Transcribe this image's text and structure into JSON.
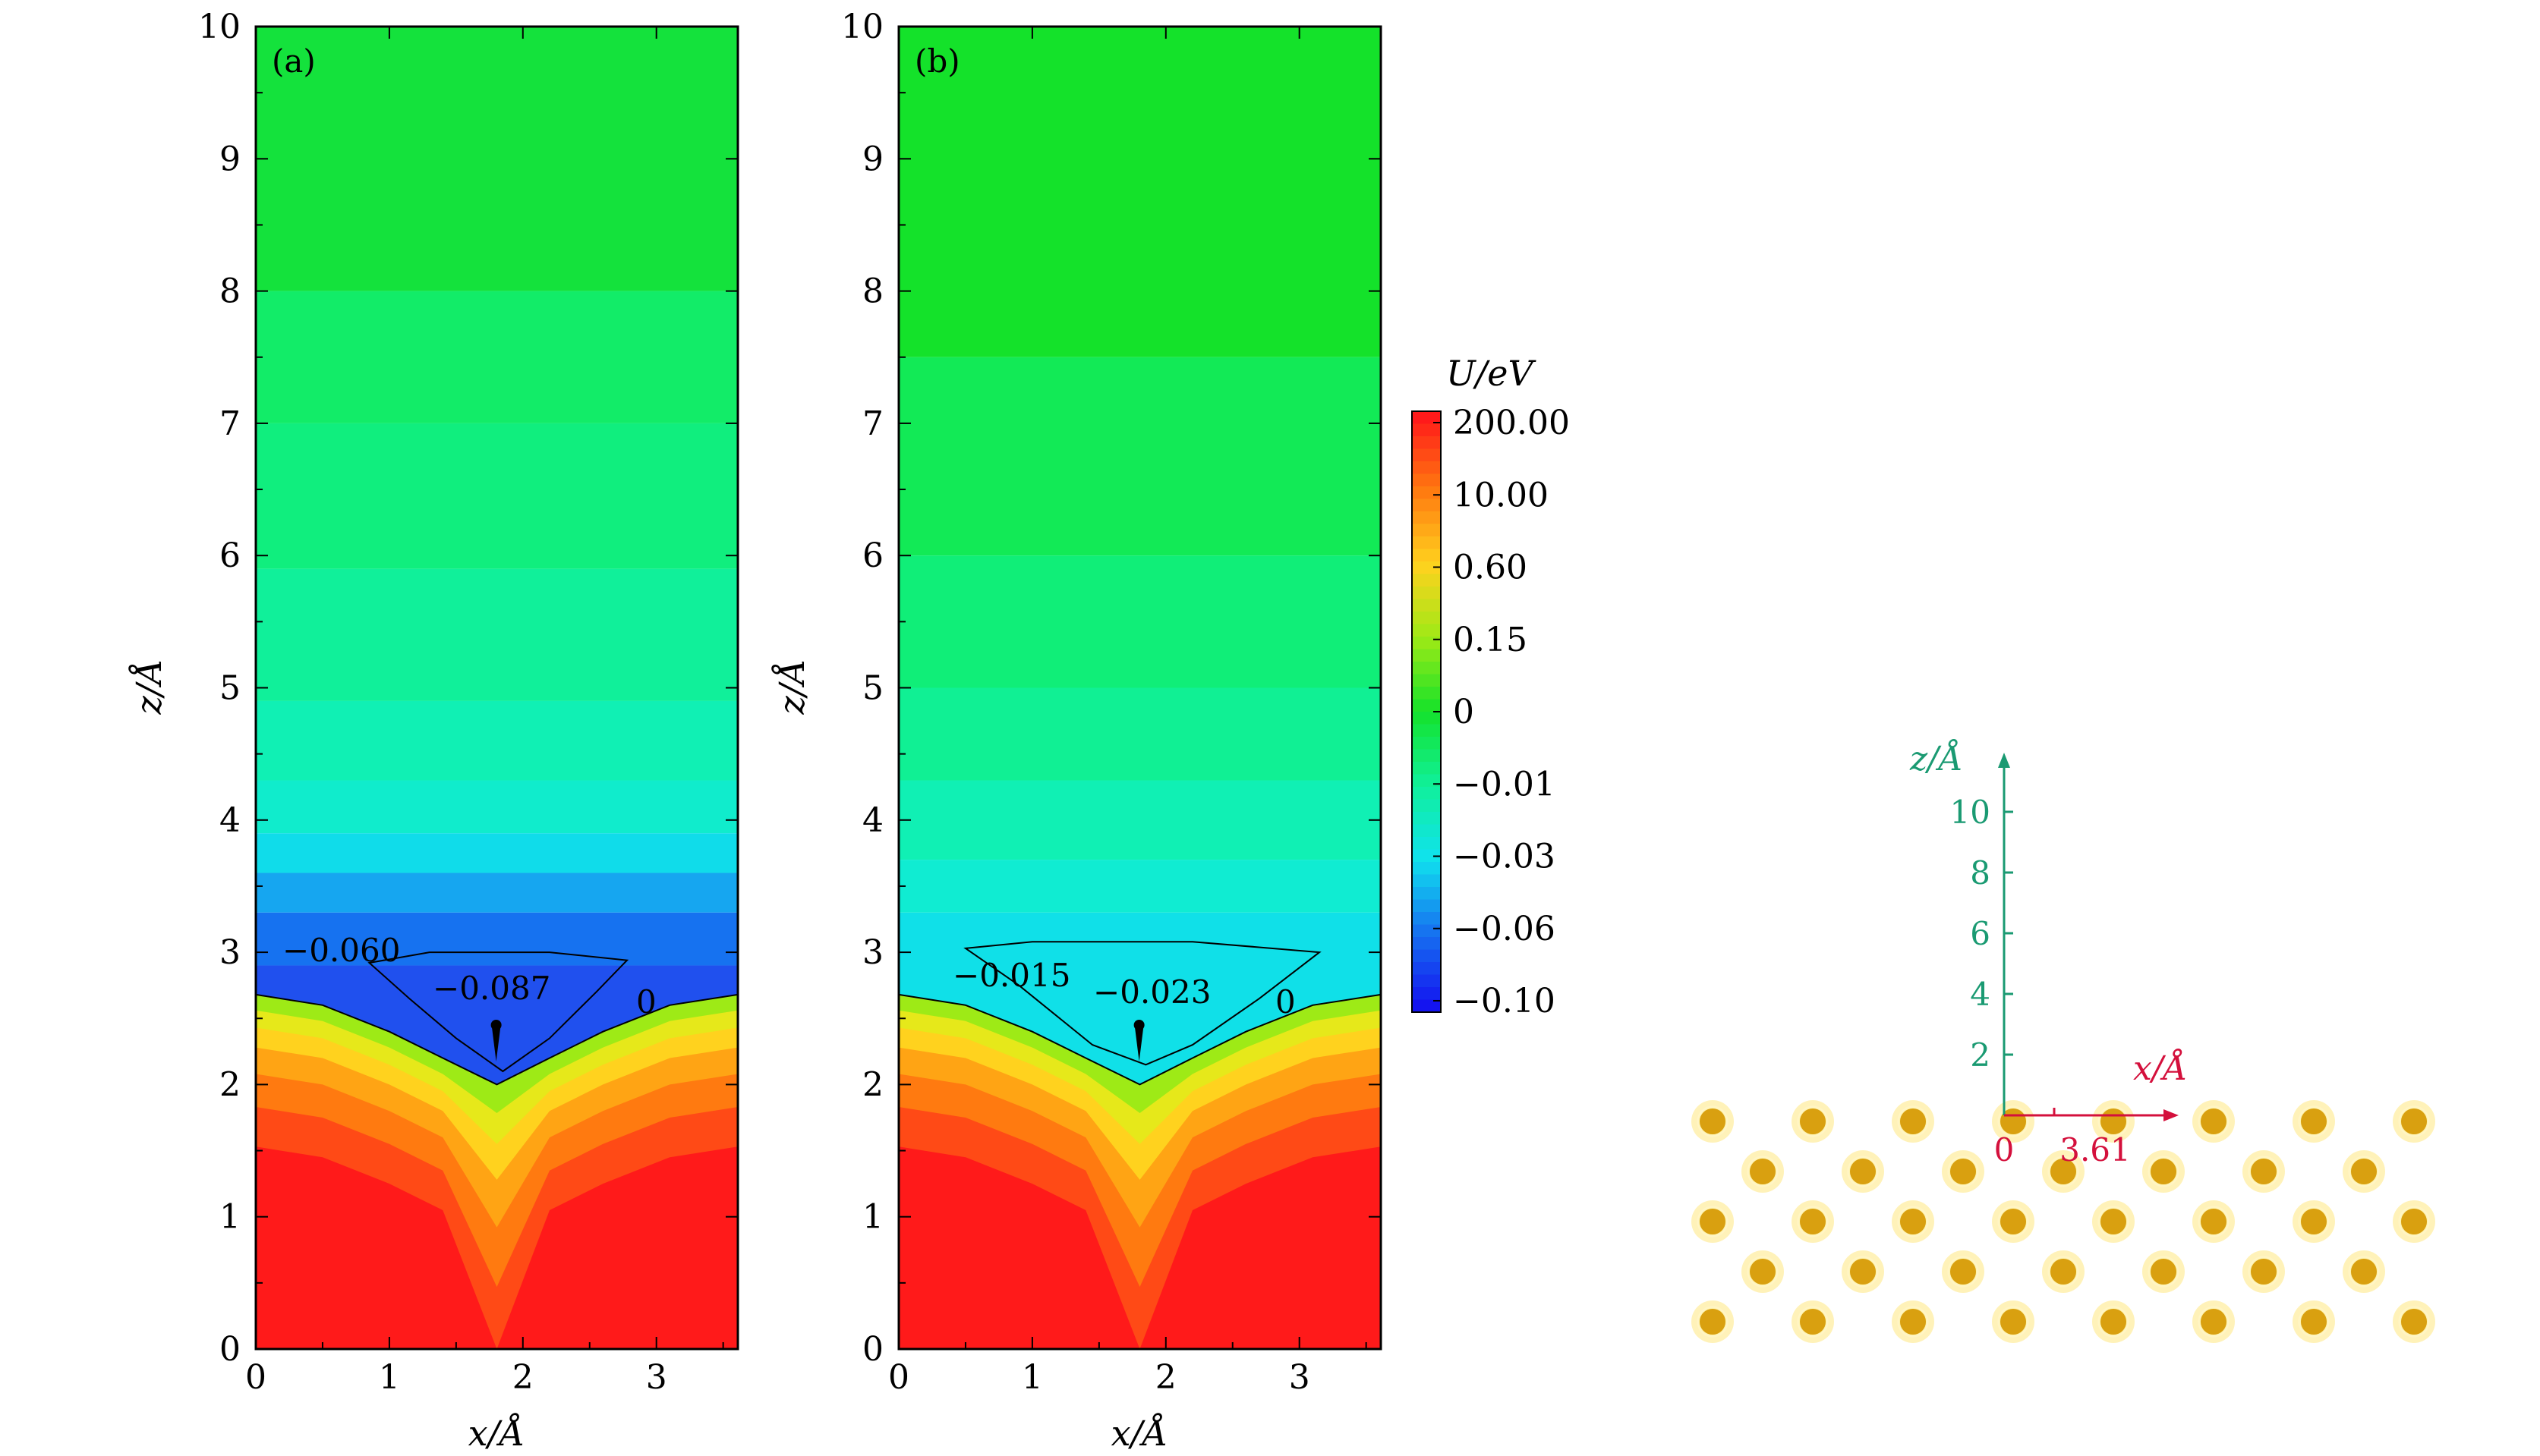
{
  "chart_data": [
    {
      "type": "heatmap",
      "panel_label": "(a)",
      "xlabel": "x/Å",
      "ylabel": "z/Å",
      "xlim": [
        0,
        3.61
      ],
      "ylim": [
        0,
        10
      ],
      "xticks": [
        "0",
        "1",
        "2",
        "3"
      ],
      "yticks": [
        "0",
        "1",
        "2",
        "3",
        "4",
        "5",
        "6",
        "7",
        "8",
        "9",
        "10"
      ],
      "surface_profile": {
        "x": [
          0,
          0.5,
          1.0,
          1.4,
          1.805,
          2.2,
          2.6,
          3.1,
          3.61
        ],
        "z": [
          2.68,
          2.6,
          2.4,
          2.2,
          2.0,
          2.2,
          2.4,
          2.6,
          2.68
        ]
      },
      "contours": [
        {
          "label": "0"
        },
        {
          "label": "−0.060"
        },
        {
          "label": "−0.087"
        }
      ],
      "minimum": {
        "x": 1.8,
        "z": 2.45
      }
    },
    {
      "type": "heatmap",
      "panel_label": "(b)",
      "xlabel": "x/Å",
      "ylabel": "z/Å",
      "xlim": [
        0,
        3.61
      ],
      "ylim": [
        0,
        10
      ],
      "xticks": [
        "0",
        "1",
        "2",
        "3"
      ],
      "yticks": [
        "0",
        "1",
        "2",
        "3",
        "4",
        "5",
        "6",
        "7",
        "8",
        "9",
        "10"
      ],
      "surface_profile": {
        "x": [
          0,
          0.5,
          1.0,
          1.4,
          1.805,
          2.2,
          2.6,
          3.1,
          3.61
        ],
        "z": [
          2.68,
          2.6,
          2.4,
          2.2,
          2.0,
          2.2,
          2.4,
          2.6,
          2.68
        ]
      },
      "contours": [
        {
          "label": "0"
        },
        {
          "label": "−0.015"
        },
        {
          "label": "−0.023"
        }
      ],
      "minimum": {
        "x": 1.8,
        "z": 2.45
      }
    }
  ],
  "colorbar": {
    "title": "U/eV",
    "tick_labels": [
      "200.00",
      "10.00",
      "0.60",
      "0.15",
      "0",
      "−0.01",
      "−0.03",
      "−0.06",
      "−0.10"
    ],
    "colors": [
      "#ff1a1a",
      "#ff7a10",
      "#ffd21e",
      "#9eea16",
      "#14e22a",
      "#10f09a",
      "#10e2ee",
      "#1672f0",
      "#1414f0"
    ]
  },
  "lattice_inset": {
    "z_axis_label": "z/Å",
    "z_ticks": [
      "2",
      "4",
      "6",
      "8",
      "10"
    ],
    "x_axis_label": "x/Å",
    "origin_label": "0",
    "x_value_label": "3.61",
    "atom_color": "#d9a010",
    "atom_glow": "#ffe98a",
    "z_axis_color": "#1a9a72",
    "x_axis_color": "#d4103c"
  }
}
